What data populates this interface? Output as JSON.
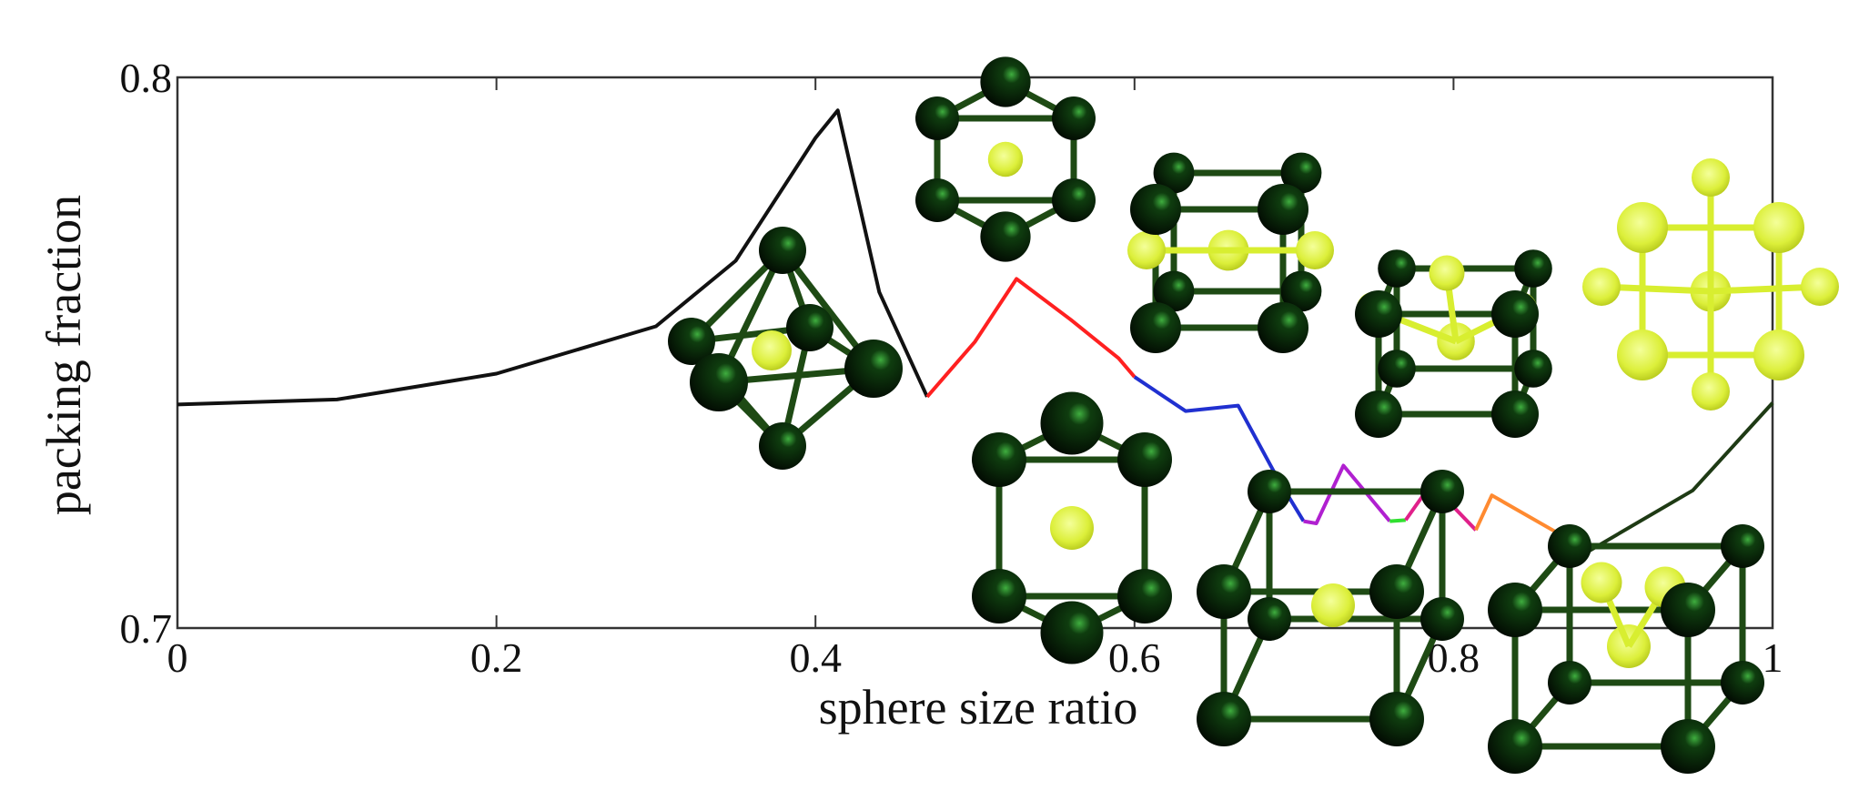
{
  "chart_data": {
    "type": "line",
    "x_label": "sphere size ratio",
    "y_label": "packing fraction",
    "xlim": [
      0,
      1
    ],
    "xticks": [
      0,
      0.2,
      0.4,
      0.6,
      0.8,
      1
    ],
    "ylim": [
      0.7,
      0.8
    ],
    "yticks": [
      0.7,
      0.8
    ],
    "series": [
      {
        "color": "#111111",
        "x": [
          0,
          0.1,
          0.2,
          0.3,
          0.35,
          0.4,
          0.414,
          0.44,
          0.47
        ],
        "values": [
          0.7406,
          0.7415,
          0.7462,
          0.7548,
          0.7667,
          0.789,
          0.794,
          0.761,
          0.742
        ]
      },
      {
        "color": "#ff2020",
        "x": [
          0.47,
          0.5,
          0.526,
          0.56,
          0.59,
          0.6
        ],
        "values": [
          0.742,
          0.752,
          0.7634,
          0.756,
          0.749,
          0.7456
        ]
      },
      {
        "color": "#2030d0",
        "x": [
          0.6,
          0.632,
          0.665,
          0.69,
          0.706
        ],
        "values": [
          0.7456,
          0.7394,
          0.7404,
          0.727,
          0.7194
        ]
      },
      {
        "color": "#b020d0",
        "x": [
          0.706,
          0.714,
          0.731,
          0.76
        ],
        "values": [
          0.7194,
          0.719,
          0.7295,
          0.7194
        ]
      },
      {
        "color": "#30e030",
        "x": [
          0.76,
          0.77
        ],
        "values": [
          0.7194,
          0.7196
        ]
      },
      {
        "color": "#e0208a",
        "x": [
          0.77,
          0.786,
          0.814
        ],
        "values": [
          0.7196,
          0.7262,
          0.7178
        ]
      },
      {
        "color": "#ff8a30",
        "x": [
          0.814,
          0.824,
          0.885
        ],
        "values": [
          0.7178,
          0.7241,
          0.714
        ]
      },
      {
        "color": "#1e3a14",
        "x": [
          0.885,
          0.95,
          1
        ],
        "values": [
          0.714,
          0.725,
          0.7409
        ]
      }
    ]
  }
}
